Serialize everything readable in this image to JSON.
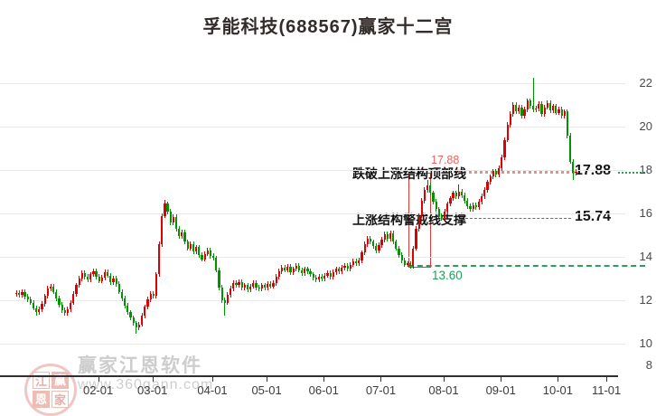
{
  "header": {
    "title": "孚能科技(688567)赢家十二宫"
  },
  "watermark": {
    "brand": "赢家江恩软件",
    "url": "www.360gann.com",
    "logo_chars": [
      "江",
      "赢",
      "恩",
      "家"
    ]
  },
  "chart_data": {
    "type": "candlestick",
    "title": "孚能科技(688567)赢家十二宫",
    "grid": true,
    "y_axis": {
      "side": "right",
      "ticks": [
        {
          "label": "22",
          "price": 22
        },
        {
          "label": "20",
          "price": 20
        },
        {
          "label": "18",
          "price": 18
        },
        {
          "label": "16",
          "price": 16
        },
        {
          "label": "14",
          "price": 14
        },
        {
          "label": "12",
          "price": 12
        },
        {
          "label": "10",
          "price": 10
        },
        {
          "label": "8",
          "price": 8
        }
      ],
      "range": [
        8.55,
        22.5
      ]
    },
    "x_axis": {
      "ticks": [
        {
          "label": "02-01",
          "index": 29
        },
        {
          "label": "03-01",
          "index": 48
        },
        {
          "label": "04-01",
          "index": 69
        },
        {
          "label": "05-01",
          "index": 88
        },
        {
          "label": "06-01",
          "index": 108
        },
        {
          "label": "07-01",
          "index": 128
        },
        {
          "label": "08-01",
          "index": 150
        },
        {
          "label": "09-01",
          "index": 170
        },
        {
          "label": "10-01",
          "index": 190
        },
        {
          "label": "11-01",
          "index": 207
        }
      ]
    },
    "first_open": 12.3,
    "open_rule": "previous_close",
    "wick_pad": 0.12,
    "closes": [
      12.35,
      12.25,
      12.4,
      12.18,
      12.05,
      11.9,
      11.65,
      11.48,
      11.6,
      11.85,
      12.2,
      12.55,
      12.65,
      12.4,
      12.1,
      11.8,
      11.55,
      11.42,
      11.6,
      11.9,
      12.3,
      12.7,
      13.0,
      13.25,
      13.1,
      12.95,
      13.2,
      13.35,
      13.1,
      12.9,
      13.05,
      13.3,
      13.15,
      12.85,
      13.0,
      12.75,
      12.4,
      12.1,
      11.75,
      11.45,
      11.2,
      10.95,
      10.75,
      10.9,
      11.3,
      11.7,
      12.05,
      12.3,
      12.2,
      13.2,
      14.6,
      15.9,
      16.45,
      16.1,
      15.6,
      15.85,
      15.3,
      14.95,
      15.15,
      14.7,
      14.4,
      14.6,
      14.25,
      14.45,
      14.1,
      13.9,
      14.15,
      14.3,
      14.05,
      13.95,
      13.4,
      12.6,
      12.0,
      11.9,
      12.25,
      12.55,
      12.8,
      12.7,
      12.85,
      12.6,
      12.7,
      12.5,
      12.65,
      12.8,
      12.6,
      12.55,
      12.7,
      12.6,
      12.75,
      12.65,
      12.8,
      13.1,
      13.35,
      13.5,
      13.4,
      13.55,
      13.3,
      13.45,
      13.6,
      13.4,
      13.25,
      13.45,
      13.35,
      13.2,
      13.05,
      12.95,
      13.1,
      13.0,
      13.15,
      13.25,
      13.1,
      13.3,
      13.45,
      13.35,
      13.5,
      13.6,
      13.45,
      13.65,
      13.8,
      13.7,
      13.85,
      14.2,
      14.6,
      14.85,
      14.7,
      14.5,
      14.3,
      14.55,
      14.8,
      15.05,
      14.85,
      15.1,
      14.7,
      14.4,
      14.1,
      13.85,
      13.65,
      13.7,
      13.6,
      14.4,
      15.3,
      15.9,
      16.6,
      17.1,
      17.3,
      16.95,
      16.55,
      16.2,
      15.9,
      15.8,
      16.1,
      16.45,
      16.7,
      16.95,
      16.8,
      17.0,
      16.85,
      16.6,
      16.35,
      16.2,
      16.4,
      16.3,
      16.55,
      16.8,
      17.1,
      17.45,
      17.7,
      17.95,
      17.8,
      18.1,
      18.6,
      19.4,
      20.1,
      20.6,
      21.0,
      20.7,
      20.9,
      20.5,
      20.8,
      21.2,
      20.95,
      20.8,
      20.85,
      21.05,
      20.6,
      20.9,
      21.1,
      20.75,
      20.95,
      20.65,
      20.8,
      20.5,
      20.7,
      19.6,
      18.4,
      17.88,
      17.92
    ],
    "wick_overrides": {
      "7": {
        "l": 11.3
      },
      "42": {
        "l": 10.45
      },
      "52": {
        "h": 16.64
      },
      "73": {
        "l": 11.3
      },
      "144": {
        "h": 17.55
      },
      "155": {
        "h": 17.35
      },
      "181": {
        "h": 22.25
      },
      "195": {
        "l": 17.55
      }
    },
    "annotations": {
      "top_structure": {
        "label": "跌破上涨结构顶部线",
        "value": "17.88",
        "price": 17.88,
        "box_corner_label": "17.88"
      },
      "warning_support": {
        "label": "上涨结构警戒线支撑",
        "value": "15.74",
        "price": 15.74
      },
      "box_bottom": {
        "label": "13.60",
        "price": 13.6
      },
      "structure_box": {
        "price_top": 17.88,
        "price_bottom": 13.6
      }
    },
    "colors": {
      "up": "#dc0000",
      "down": "#009400",
      "grid": "#e9e9e9",
      "axis": "#2f2f2f",
      "annotation_red": "#e23b3b",
      "annotation_green": "#2aa05a",
      "value_text": "#141414",
      "watermark": "#cdcdcd"
    },
    "legend": null
  }
}
